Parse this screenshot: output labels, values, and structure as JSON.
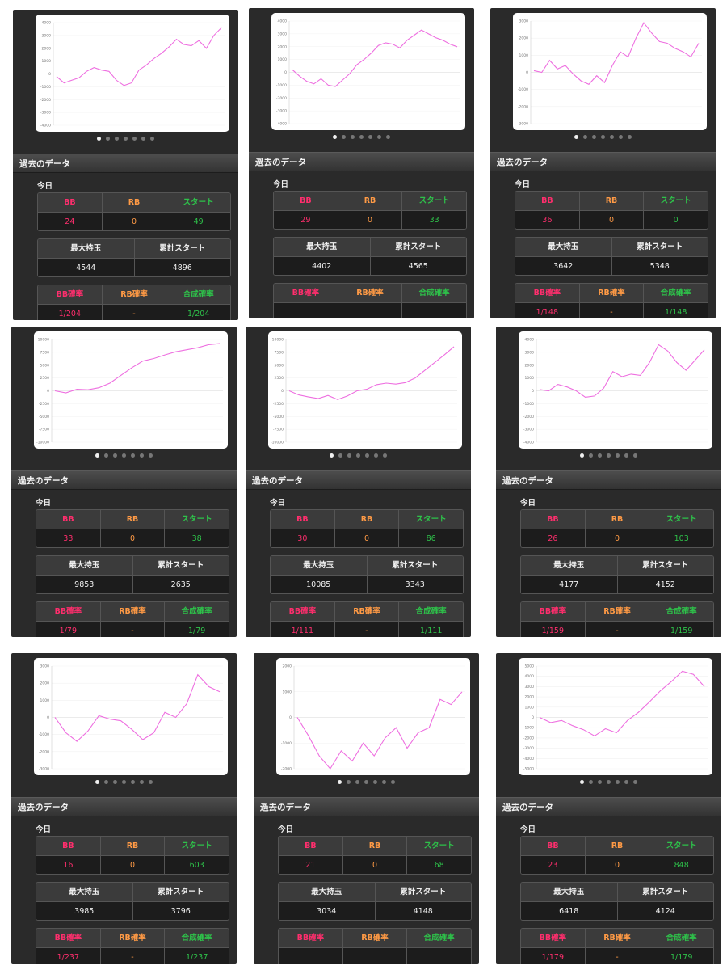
{
  "panels": [
    {
      "id": 1,
      "ylim": [
        -4000,
        4000
      ],
      "yticks": [
        "4000",
        "3000",
        "2000",
        "1000",
        "0",
        "-1000",
        "-2000",
        "-3000",
        "-4000"
      ],
      "chart_series": [
        {
          "name": "",
          "values": [
            -200,
            -700,
            -500,
            -300,
            200,
            500,
            300,
            200,
            -500,
            -900,
            -700,
            300,
            700,
            1200,
            1600,
            2100,
            2700,
            2300,
            2200,
            2600,
            2000,
            3000,
            3600
          ]
        }
      ],
      "section_title": "過去のデータ",
      "day_label": "今日",
      "t1_headers": [
        "BB",
        "RB",
        "スタート"
      ],
      "t1_values": [
        "24",
        "0",
        "49"
      ],
      "t2_headers": [
        "最大持玉",
        "累計スタート"
      ],
      "t2_values": [
        "4544",
        "4896"
      ],
      "t3_headers": [
        "BB確率",
        "RB確率",
        "合成確率"
      ],
      "t3_values": [
        "1/204",
        "-",
        "1/204"
      ]
    },
    {
      "id": 2,
      "ylim": [
        -4000,
        4000
      ],
      "yticks": [
        "4000",
        "3000",
        "2000",
        "1000",
        "0",
        "-1000",
        "-2000",
        "-3000",
        "-4000"
      ],
      "chart_series": [
        {
          "name": "",
          "values": [
            200,
            -300,
            -700,
            -900,
            -500,
            -1000,
            -1100,
            -600,
            -100,
            600,
            1000,
            1500,
            2100,
            2300,
            2200,
            1900,
            2500,
            2900,
            3300,
            3000,
            2700,
            2500,
            2200,
            2000
          ]
        }
      ],
      "section_title": "過去のデータ",
      "day_label": "今日",
      "t1_headers": [
        "BB",
        "RB",
        "スタート"
      ],
      "t1_values": [
        "29",
        "0",
        "33"
      ],
      "t2_headers": [
        "最大持玉",
        "累計スタート"
      ],
      "t2_values": [
        "4402",
        "4565"
      ],
      "t3_headers": [
        "BB確率",
        "RB確率",
        "合成確率"
      ],
      "t3_values": [
        "",
        "",
        ""
      ]
    },
    {
      "id": 3,
      "ylim": [
        -3000,
        3000
      ],
      "yticks": [
        "3000",
        "2000",
        "1000",
        "0",
        "-1000",
        "-2000",
        "-3000"
      ],
      "chart_series": [
        {
          "name": "",
          "values": [
            100,
            0,
            700,
            200,
            400,
            -100,
            -500,
            -700,
            -200,
            -600,
            400,
            1200,
            900,
            2000,
            2900,
            2300,
            1800,
            1700,
            1400,
            1200,
            900,
            1700
          ]
        }
      ],
      "section_title": "過去のデータ",
      "day_label": "今日",
      "t1_headers": [
        "BB",
        "RB",
        "スタート"
      ],
      "t1_values": [
        "36",
        "0",
        "0"
      ],
      "t2_headers": [
        "最大持玉",
        "累計スタート"
      ],
      "t2_values": [
        "3642",
        "5348"
      ],
      "t3_headers": [
        "BB確率",
        "RB確率",
        "合成確率"
      ],
      "t3_values": [
        "1/148",
        "-",
        "1/148"
      ]
    },
    {
      "id": 4,
      "ylim": [
        -10000,
        10000
      ],
      "yticks": [
        "10000",
        "7500",
        "5000",
        "2500",
        "0",
        "-2500",
        "-5000",
        "-7500",
        "-10000"
      ],
      "chart_series": [
        {
          "name": "",
          "values": [
            0,
            -400,
            300,
            200,
            600,
            1500,
            3000,
            4500,
            5800,
            6300,
            7000,
            7600,
            8000,
            8400,
            9000,
            9200
          ]
        }
      ],
      "section_title": "過去のデータ",
      "day_label": "今日",
      "t1_headers": [
        "BB",
        "RB",
        "スタート"
      ],
      "t1_values": [
        "33",
        "0",
        "38"
      ],
      "t2_headers": [
        "最大持玉",
        "累計スタート"
      ],
      "t2_values": [
        "9853",
        "2635"
      ],
      "t3_headers": [
        "BB確率",
        "RB確率",
        "合成確率"
      ],
      "t3_values": [
        "1/79",
        "-",
        "1/79"
      ]
    },
    {
      "id": 5,
      "ylim": [
        -10000,
        10000
      ],
      "yticks": [
        "10000",
        "7500",
        "5000",
        "2500",
        "0",
        "-2500",
        "-5000",
        "-7500",
        "-10000"
      ],
      "chart_series": [
        {
          "name": "",
          "values": [
            0,
            -800,
            -1200,
            -1500,
            -900,
            -1700,
            -1000,
            0,
            300,
            1200,
            1500,
            1300,
            1600,
            2500,
            4000,
            5500,
            7000,
            8600
          ]
        }
      ],
      "section_title": "過去のデータ",
      "day_label": "今日",
      "t1_headers": [
        "BB",
        "RB",
        "スタート"
      ],
      "t1_values": [
        "30",
        "0",
        "86"
      ],
      "t2_headers": [
        "最大持玉",
        "累計スタート"
      ],
      "t2_values": [
        "10085",
        "3343"
      ],
      "t3_headers": [
        "BB確率",
        "RB確率",
        "合成確率"
      ],
      "t3_values": [
        "1/111",
        "-",
        "1/111"
      ]
    },
    {
      "id": 6,
      "ylim": [
        -4000,
        4000
      ],
      "yticks": [
        "4000",
        "3000",
        "2000",
        "1000",
        "0",
        "-1000",
        "-2000",
        "-3000",
        "-4000"
      ],
      "chart_series": [
        {
          "name": "",
          "values": [
            100,
            0,
            500,
            300,
            0,
            -500,
            -400,
            200,
            1500,
            1100,
            1300,
            1200,
            2200,
            3600,
            3100,
            2200,
            1600,
            2400,
            3200
          ]
        }
      ],
      "section_title": "過去のデータ",
      "day_label": "今日",
      "t1_headers": [
        "BB",
        "RB",
        "スタート"
      ],
      "t1_values": [
        "26",
        "0",
        "103"
      ],
      "t2_headers": [
        "最大持玉",
        "累計スタート"
      ],
      "t2_values": [
        "4177",
        "4152"
      ],
      "t3_headers": [
        "BB確率",
        "RB確率",
        "合成確率"
      ],
      "t3_values": [
        "1/159",
        "-",
        "1/159"
      ]
    },
    {
      "id": 7,
      "ylim": [
        -3000,
        3000
      ],
      "yticks": [
        "3000",
        "2000",
        "1000",
        "0",
        "-1000",
        "-2000",
        "-3000"
      ],
      "chart_series": [
        {
          "name": "",
          "values": [
            0,
            -900,
            -1400,
            -800,
            100,
            -100,
            -200,
            -700,
            -1300,
            -900,
            300,
            0,
            800,
            2500,
            1800,
            1500
          ]
        }
      ],
      "section_title": "過去のデータ",
      "day_label": "今日",
      "t1_headers": [
        "BB",
        "RB",
        "スタート"
      ],
      "t1_values": [
        "16",
        "0",
        "603"
      ],
      "t2_headers": [
        "最大持玉",
        "累計スタート"
      ],
      "t2_values": [
        "3985",
        "3796"
      ],
      "t3_headers": [
        "BB確率",
        "RB確率",
        "合成確率"
      ],
      "t3_values": [
        "1/237",
        "-",
        "1/237"
      ]
    },
    {
      "id": 8,
      "ylim": [
        -2000,
        2000
      ],
      "yticks": [
        "2000",
        "1000",
        "0",
        "-1000",
        "-2000"
      ],
      "chart_series": [
        {
          "name": "",
          "values": [
            0,
            -700,
            -1500,
            -2000,
            -1300,
            -1700,
            -1000,
            -1500,
            -800,
            -400,
            -1200,
            -600,
            -400,
            700,
            500,
            1000
          ]
        }
      ],
      "section_title": "過去のデータ",
      "day_label": "今日",
      "t1_headers": [
        "BB",
        "RB",
        "スタート"
      ],
      "t1_values": [
        "21",
        "0",
        "68"
      ],
      "t2_headers": [
        "最大持玉",
        "累計スタート"
      ],
      "t2_values": [
        "3034",
        "4148"
      ],
      "t3_headers": [
        "BB確率",
        "RB確率",
        "合成確率"
      ],
      "t3_values": [
        "",
        "",
        ""
      ]
    },
    {
      "id": 9,
      "ylim": [
        -5000,
        5000
      ],
      "yticks": [
        "5000",
        "4000",
        "3000",
        "2000",
        "1000",
        "0",
        "-1000",
        "-2000",
        "-3000",
        "-4000",
        "-5000"
      ],
      "chart_series": [
        {
          "name": "",
          "values": [
            0,
            -500,
            -300,
            -800,
            -1200,
            -1800,
            -1100,
            -1500,
            -300,
            500,
            1500,
            2600,
            3500,
            4500,
            4200,
            3000
          ]
        }
      ],
      "section_title": "過去のデータ",
      "day_label": "今日",
      "t1_headers": [
        "BB",
        "RB",
        "スタート"
      ],
      "t1_values": [
        "23",
        "0",
        "848"
      ],
      "t2_headers": [
        "最大持玉",
        "累計スタート"
      ],
      "t2_values": [
        "6418",
        "4124"
      ],
      "t3_headers": [
        "BB確率",
        "RB確率",
        "合成確率"
      ],
      "t3_values": [
        "1/179",
        "-",
        "1/179"
      ]
    }
  ],
  "colors": {
    "line": "#ee6fe0",
    "bb": "#ff2e6d",
    "rb": "#ff9a45",
    "start": "#2ec24a"
  }
}
